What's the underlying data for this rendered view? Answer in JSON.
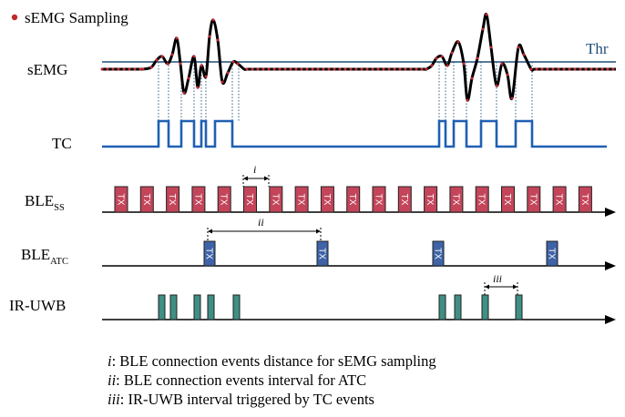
{
  "legend": {
    "marker_label": "sEMG Sampling"
  },
  "rows": {
    "semg": "sEMG",
    "tc": "TC",
    "ble_ss_main": "BLE",
    "ble_ss_sub": "SS",
    "ble_atc_main": "BLE",
    "ble_atc_sub": "ATC",
    "ir_uwb": "IR-UWB"
  },
  "threshold_label": "Thr",
  "packet_label": "TX",
  "annotations": {
    "i": "i",
    "ii": "ii",
    "iii": "iii"
  },
  "footnotes": [
    {
      "mark": "i",
      "text": ": BLE connection events distance for sEMG sampling"
    },
    {
      "mark": "ii",
      "text": ": BLE connection events interval for ATC"
    },
    {
      "mark": "iii",
      "text": ": IR-UWB interval triggered by TC events"
    }
  ],
  "colors": {
    "signal": "#000000",
    "sample_dots": "#c1272d",
    "threshold": "#1f4e79",
    "tc_trace": "#1f5fb4",
    "guide": "#1f4e79",
    "ble_ss_fill": "#c4455a",
    "ble_atc_fill": "#3e63a8",
    "uwb_fill": "#3f8f84",
    "axis": "#000000"
  }
}
